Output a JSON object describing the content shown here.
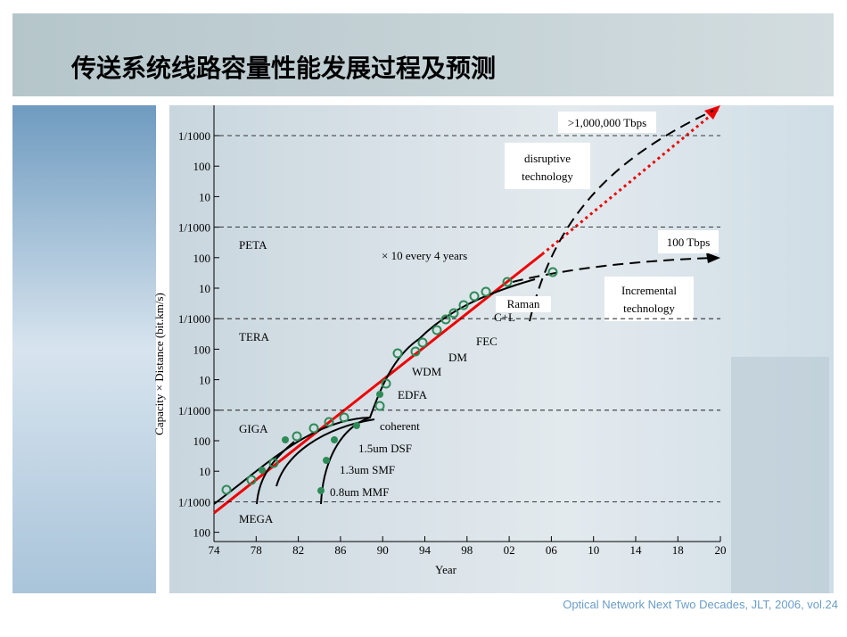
{
  "title": "传送系统线路容量性能发展过程及预测",
  "footer": "Optical Network Next Two Decades, JLT, 2006, vol.24",
  "chart": {
    "y_axis_label": "Capacity × Distance (bit.km/s)",
    "x_axis_label": "Year",
    "yticks": [
      "1/1000",
      "100",
      "10",
      "1/1000",
      "100",
      "10",
      "1/1000",
      "100",
      "10",
      "1/1000",
      "100",
      "10",
      "1/1000",
      "100"
    ],
    "xticks": [
      "74",
      "78",
      "82",
      "86",
      "90",
      "94",
      "98",
      "02",
      "06",
      "10",
      "14",
      "18",
      "20"
    ],
    "regions": [
      "PETA",
      "TERA",
      "GIGA",
      "MEGA"
    ],
    "annotations": {
      "top": ">1,000,000 Tbps",
      "disruptive": [
        "disruptive",
        "technology"
      ],
      "incremental_top": "100 Tbps",
      "incremental": [
        "Incremental",
        "technology"
      ],
      "trend": "× 10 every 4 years",
      "raman": "Raman",
      "cl": "C+L",
      "fec": "FEC",
      "dm": "DM",
      "wdm": "WDM",
      "edfa": "EDFA",
      "coherent": "coherent",
      "dsf": "1.5um DSF",
      "smf": "1.3um SMF",
      "mmf": "0.8um MMF"
    }
  }
}
